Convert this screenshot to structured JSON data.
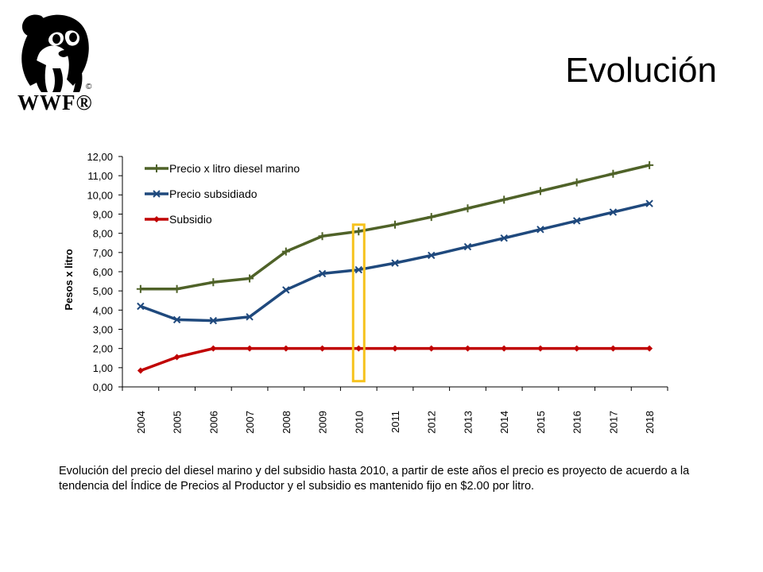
{
  "logo": {
    "text": "WWF®",
    "copyright": "©"
  },
  "slide_title": "Evolución",
  "caption": "Evolución del precio del diesel marino y del subsidio hasta 2010, a partir de este años el precio es proyecto de acuerdo a la tendencia del Índice de Precios al Productor y el subsidio es mantenido fijo en $2.00 por litro.",
  "chart_data": {
    "type": "line",
    "title": "",
    "xlabel": "",
    "ylabel": "Pesos x litro",
    "ylim": [
      0,
      12
    ],
    "ytick_step": 1,
    "ytick_labels": [
      "0,00",
      "1,00",
      "2,00",
      "3,00",
      "4,00",
      "5,00",
      "6,00",
      "7,00",
      "8,00",
      "9,00",
      "10,00",
      "11,00",
      "12,00"
    ],
    "categories": [
      "2004",
      "2005",
      "2006",
      "2007",
      "2008",
      "2009",
      "2010",
      "2011",
      "2012",
      "2013",
      "2014",
      "2015",
      "2016",
      "2017",
      "2018"
    ],
    "legend_position": "top-left",
    "highlight_category": "2010",
    "series": [
      {
        "name": "Precio x litro diesel marino",
        "color": "#4F6228",
        "marker": "plus",
        "values": [
          5.1,
          5.1,
          5.45,
          5.65,
          7.05,
          7.85,
          8.1,
          8.45,
          8.85,
          9.3,
          9.75,
          10.2,
          10.65,
          11.1,
          11.55
        ]
      },
      {
        "name": "Precio subsidiado",
        "color": "#1F497D",
        "marker": "x",
        "values": [
          4.2,
          3.5,
          3.45,
          3.65,
          5.05,
          5.9,
          6.1,
          6.45,
          6.85,
          7.3,
          7.75,
          8.2,
          8.65,
          9.1,
          9.55
        ]
      },
      {
        "name": "Subsidio",
        "color": "#C00000",
        "marker": "diamond",
        "values": [
          0.85,
          1.55,
          2.0,
          2.0,
          2.0,
          2.0,
          2.0,
          2.0,
          2.0,
          2.0,
          2.0,
          2.0,
          2.0,
          2.0,
          2.0
        ]
      }
    ],
    "colors": {
      "axis": "#000000",
      "highlight_box": "#F6C21C"
    }
  }
}
